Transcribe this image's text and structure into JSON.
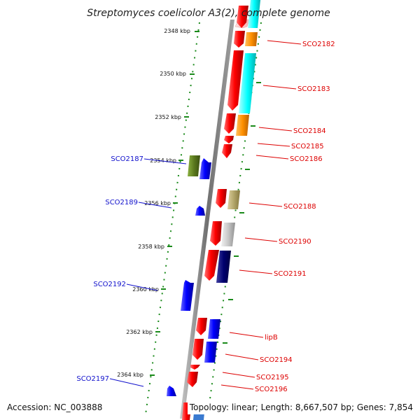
{
  "title": "Streptomyces coelicolor A3(2), complete genome",
  "footer": {
    "accession": "Accession: NC_003888",
    "topology": "Topology: linear; Length: 8,667,507 bp; Genes: 7,854"
  },
  "kbp_markers": [
    {
      "label": "2348 kbp"
    },
    {
      "label": "2350 kbp"
    },
    {
      "label": "2352 kbp"
    },
    {
      "label": "2354 kbp"
    },
    {
      "label": "2356 kbp"
    },
    {
      "label": "2358 kbp"
    },
    {
      "label": "2360 kbp"
    },
    {
      "label": "2362 kbp"
    },
    {
      "label": "2364 kbp"
    }
  ],
  "genes_right": [
    {
      "name": "SCO2182"
    },
    {
      "name": "SCO2183"
    },
    {
      "name": "SCO2184"
    },
    {
      "name": "SCO2185"
    },
    {
      "name": "SCO2186"
    },
    {
      "name": "SCO2188"
    },
    {
      "name": "SCO2190"
    },
    {
      "name": "SCO2191"
    },
    {
      "name": "lipB"
    },
    {
      "name": "SCO2194"
    },
    {
      "name": "SCO2195"
    },
    {
      "name": "SCO2196"
    }
  ],
  "genes_left": [
    {
      "name": "SCO2187"
    },
    {
      "name": "SCO2189"
    },
    {
      "name": "SCO2192"
    },
    {
      "name": "SCO2197"
    }
  ],
  "colors": {
    "forward_gene": "#ee0000",
    "reverse_gene": "#0000ee",
    "label_right": "#dd0000",
    "label_left": "#1010cc",
    "tick_green": "#1a8a1a",
    "feature_cyan": "#00e5e5",
    "feature_orange": "#f08c00",
    "feature_olive": "#5c7a1f",
    "feature_khaki": "#b3a66a",
    "feature_gray": "#c4c4c4",
    "feature_navy": "#00006e"
  }
}
